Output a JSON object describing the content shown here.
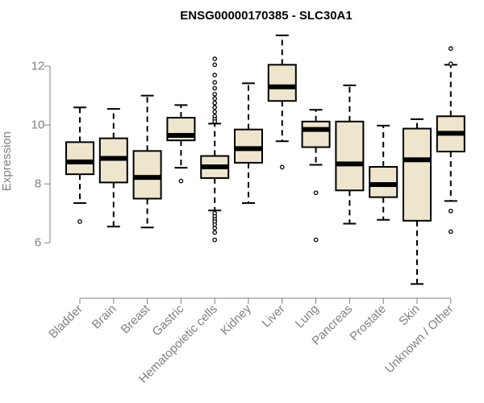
{
  "chart_data": {
    "type": "boxplot",
    "title": "ENSG00000170385 - SLC30A1",
    "xlabel": "",
    "ylabel": "Expression",
    "ylim": [
      4.5,
      13.1
    ],
    "yticks": [
      6,
      8,
      10,
      12
    ],
    "colors": {
      "box_fill": "#ede6cc",
      "stroke": "#000000",
      "axis": "#808080"
    },
    "categories": [
      "Bladder",
      "Brain",
      "Breast",
      "Gastric",
      "Hematopoietic cells",
      "Kidney",
      "Liver",
      "Lung",
      "Pancreas",
      "Prostate",
      "Skin",
      "Unknown / Other"
    ],
    "boxes": [
      {
        "min": 7.35,
        "q1": 8.33,
        "median": 8.75,
        "q3": 9.42,
        "max": 10.6,
        "outliers": [
          6.72
        ]
      },
      {
        "min": 6.55,
        "q1": 8.05,
        "median": 8.87,
        "q3": 9.55,
        "max": 10.55,
        "outliers": []
      },
      {
        "min": 6.52,
        "q1": 7.5,
        "median": 8.22,
        "q3": 9.12,
        "max": 11.0,
        "outliers": []
      },
      {
        "min": 8.55,
        "q1": 9.48,
        "median": 9.65,
        "q3": 10.25,
        "max": 10.68,
        "outliers": [
          8.1
        ]
      },
      {
        "min": 7.1,
        "q1": 8.2,
        "median": 8.58,
        "q3": 8.95,
        "max": 10.05,
        "outliers": [
          12.25,
          12.05,
          11.7,
          11.45,
          11.25,
          11.05,
          10.9,
          10.75,
          10.6,
          10.45,
          10.3,
          10.2,
          10.12,
          7.0,
          6.9,
          6.8,
          6.72,
          6.62,
          6.5,
          6.35,
          6.1
        ]
      },
      {
        "min": 7.35,
        "q1": 8.72,
        "median": 9.2,
        "q3": 9.85,
        "max": 11.42,
        "outliers": []
      },
      {
        "min": 9.45,
        "q1": 10.82,
        "median": 11.3,
        "q3": 12.05,
        "max": 13.05,
        "outliers": [
          8.57
        ]
      },
      {
        "min": 8.65,
        "q1": 9.25,
        "median": 9.85,
        "q3": 10.12,
        "max": 10.52,
        "outliers": [
          7.7,
          6.1
        ]
      },
      {
        "min": 6.65,
        "q1": 7.78,
        "median": 8.68,
        "q3": 10.12,
        "max": 11.35,
        "outliers": []
      },
      {
        "min": 6.78,
        "q1": 7.55,
        "median": 7.98,
        "q3": 8.58,
        "max": 9.98,
        "outliers": []
      },
      {
        "min": 4.6,
        "q1": 6.75,
        "median": 8.82,
        "q3": 9.88,
        "max": 10.2,
        "outliers": []
      },
      {
        "min": 7.42,
        "q1": 9.1,
        "median": 9.72,
        "q3": 10.3,
        "max": 12.05,
        "outliers": [
          12.6,
          12.08,
          7.08,
          6.38
        ]
      }
    ]
  }
}
